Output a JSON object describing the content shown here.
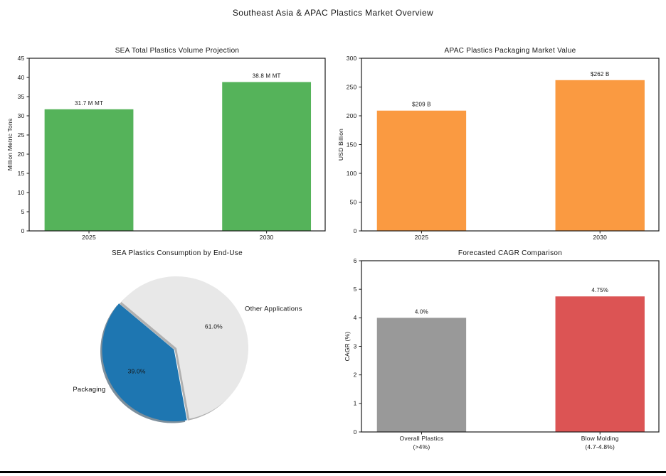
{
  "figure": {
    "title": "Southeast Asia & APAC Plastics Market Overview"
  },
  "chart_data": [
    {
      "id": "sea-volume",
      "type": "bar",
      "title": "SEA Total Plastics Volume Projection",
      "xlabel": "",
      "ylabel": "Million Metric Tons",
      "categories": [
        "2025",
        "2030"
      ],
      "values": [
        31.7,
        38.8
      ],
      "bar_labels": [
        "31.7 M MT",
        "38.8 M MT"
      ],
      "bar_color": "#55b35a",
      "ylim": [
        0,
        45
      ],
      "ytick_step": 5,
      "yticks": [
        0,
        5,
        10,
        15,
        20,
        25,
        30,
        35,
        40,
        45
      ],
      "grid": false,
      "legend": null
    },
    {
      "id": "apac-value",
      "type": "bar",
      "title": "APAC Plastics Packaging Market Value",
      "xlabel": "",
      "ylabel": "USD Billion",
      "categories": [
        "2025",
        "2030"
      ],
      "values": [
        209,
        262
      ],
      "bar_labels": [
        "$209 B",
        "$262 B"
      ],
      "bar_color": "#fa9a41",
      "ylim": [
        0,
        300
      ],
      "ytick_step": 50,
      "yticks": [
        0,
        50,
        100,
        150,
        200,
        250,
        300
      ],
      "grid": false,
      "legend": null
    },
    {
      "id": "end-use-pie",
      "type": "pie",
      "title": "SEA Plastics Consumption by End-Use",
      "startangle": 140,
      "shadow": true,
      "slices": [
        {
          "label": "Packaging",
          "value": 39.0,
          "pct_label": "39.0%",
          "color": "#1e76b1",
          "shadow_color": "#7d8f9c",
          "explode": 0.04
        },
        {
          "label": "Other Applications",
          "value": 61.0,
          "pct_label": "61.0%",
          "color": "#e8e8e8",
          "shadow_color": "#b0b0b0",
          "explode": 0
        }
      ],
      "grid": false,
      "legend": null
    },
    {
      "id": "cagr",
      "type": "bar",
      "title": "Forecasted CAGR Comparison",
      "xlabel": "",
      "ylabel": "CAGR (%)",
      "categories": [
        "Overall Plastics\n(>4%)",
        "Blow Molding\n(4.7-4.8%)"
      ],
      "values": [
        4.0,
        4.75
      ],
      "bar_labels": [
        "4.0%",
        "4.75%"
      ],
      "bar_colors": [
        "#999999",
        "#dc5454"
      ],
      "ylim": [
        0,
        6
      ],
      "ytick_step": 1,
      "yticks": [
        0,
        1,
        2,
        3,
        4,
        5,
        6
      ],
      "grid": false,
      "legend": null
    }
  ]
}
